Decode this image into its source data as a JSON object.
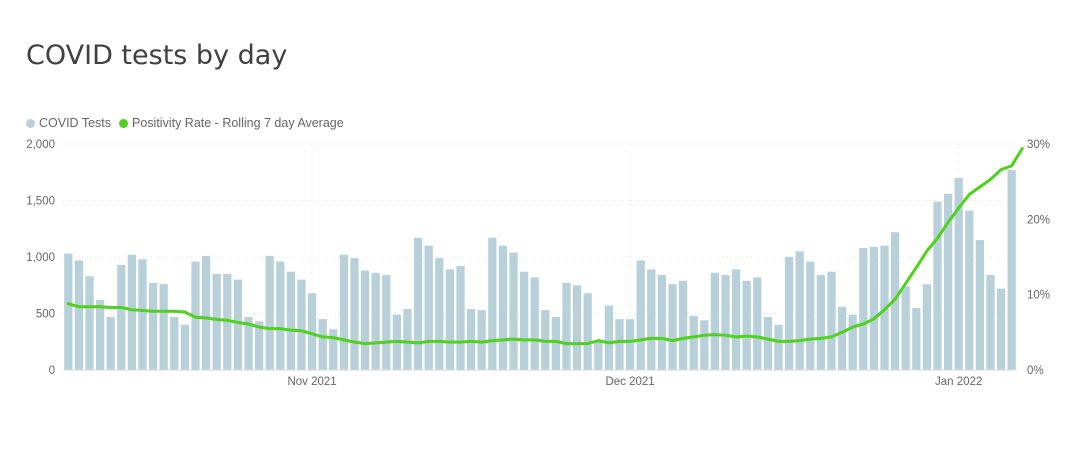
{
  "title": "COVID tests by day",
  "legend": [
    {
      "label": "COVID Tests",
      "color": "#b8d0da"
    },
    {
      "label": "Positivity Rate - Rolling 7 day Average",
      "color": "#4ed21b"
    }
  ],
  "chart_data": {
    "type": "bar",
    "title": "COVID tests by day",
    "x_start": "2021-10-09",
    "x_ticks": [
      {
        "label": "Nov 2021",
        "date": "2021-11-01"
      },
      {
        "label": "Dec 2021",
        "date": "2021-12-01"
      },
      {
        "label": "Jan 2022",
        "date": "2022-01-01"
      }
    ],
    "y_left": {
      "ticks": [
        "0",
        "500",
        "1,000",
        "1,500",
        "2,000"
      ],
      "values": [
        0,
        500,
        1000,
        1500,
        2000
      ],
      "ylim": [
        0,
        2000
      ]
    },
    "y_right": {
      "ticks": [
        "0%",
        "10%",
        "20%",
        "30%"
      ],
      "values": [
        0,
        10,
        20,
        30
      ],
      "ylim": [
        0,
        30
      ]
    },
    "grid": true,
    "legend_position": "top-left",
    "series": [
      {
        "name": "COVID Tests",
        "type": "bar",
        "axis": "left",
        "color": "#b8d0da",
        "values": [
          1030,
          970,
          830,
          620,
          470,
          930,
          1020,
          980,
          770,
          760,
          470,
          400,
          960,
          1010,
          850,
          850,
          800,
          470,
          430,
          1010,
          960,
          870,
          800,
          680,
          450,
          360,
          1020,
          990,
          880,
          860,
          840,
          490,
          540,
          1170,
          1100,
          990,
          890,
          920,
          540,
          530,
          1170,
          1100,
          1040,
          870,
          820,
          530,
          470,
          770,
          750,
          680,
          250,
          570,
          450,
          450,
          970,
          890,
          840,
          760,
          790,
          480,
          440,
          860,
          840,
          890,
          790,
          820,
          470,
          400,
          1000,
          1050,
          960,
          840,
          870,
          560,
          490,
          1080,
          1090,
          1100,
          1220,
          740,
          550,
          760,
          1490,
          1560,
          1700,
          1410,
          1150,
          840,
          720,
          1770
        ]
      },
      {
        "name": "Positivity Rate - Rolling 7 day Average",
        "type": "line",
        "axis": "right",
        "color": "#4ed21b",
        "values": [
          8.8,
          8.4,
          8.4,
          8.4,
          8.3,
          8.3,
          8.0,
          7.9,
          7.8,
          7.8,
          7.8,
          7.7,
          7.0,
          6.9,
          6.7,
          6.6,
          6.3,
          6.1,
          5.7,
          5.5,
          5.5,
          5.3,
          5.2,
          4.8,
          4.4,
          4.3,
          4.0,
          3.7,
          3.5,
          3.6,
          3.7,
          3.8,
          3.7,
          3.6,
          3.8,
          3.8,
          3.7,
          3.7,
          3.8,
          3.7,
          3.9,
          4.0,
          4.1,
          4.0,
          4.0,
          3.8,
          3.8,
          3.5,
          3.5,
          3.5,
          3.9,
          3.6,
          3.8,
          3.8,
          4.0,
          4.2,
          4.2,
          3.9,
          4.2,
          4.4,
          4.6,
          4.7,
          4.6,
          4.4,
          4.5,
          4.4,
          4.1,
          3.8,
          3.8,
          3.9,
          4.1,
          4.2,
          4.4,
          5.0,
          5.7,
          6.1,
          6.8,
          8.0,
          9.4,
          11.5,
          13.6,
          15.8,
          17.5,
          19.6,
          21.5,
          23.3,
          24.3,
          25.3,
          26.6,
          27.1,
          29.4
        ]
      }
    ]
  }
}
